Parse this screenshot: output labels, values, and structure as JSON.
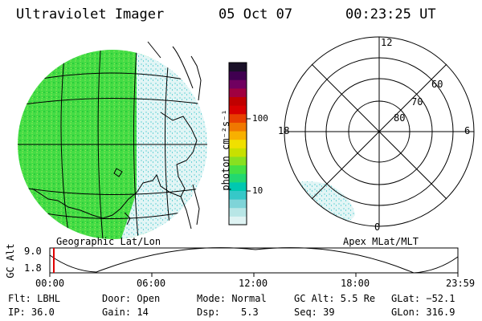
{
  "header": {
    "instrument": "Ultraviolet Imager",
    "date": "05 Oct 07",
    "time": "00:23:25 UT"
  },
  "colorbar": {
    "unit_label": "photon cm⁻²s⁻¹",
    "ticks": [
      "100",
      "10"
    ],
    "colors": [
      "#dff3f3",
      "#b8e6e6",
      "#7fd4d8",
      "#36c8c8",
      "#00c8b0",
      "#22d870",
      "#44e044",
      "#88e020",
      "#c8e000",
      "#f0e000",
      "#f8b000",
      "#f07800",
      "#e84000",
      "#d80000",
      "#c00000",
      "#a00040",
      "#700060",
      "#400050",
      "#1a1028"
    ]
  },
  "left_map": {
    "label": "Geographic Lat/Lon"
  },
  "polar_plot": {
    "label": "Apex MLat/MLT",
    "mlt_labels": {
      "top": "12",
      "left": "18",
      "right": "6",
      "bottom": "0"
    },
    "lat_labels": [
      "60",
      "70",
      "80"
    ]
  },
  "timeline": {
    "axis_label": "GC Alt",
    "y_ticks": [
      "9.0",
      "1.8"
    ],
    "x_ticks": [
      "00:00",
      "06:00",
      "12:00",
      "18:00",
      "23:59"
    ],
    "marker_color": "#e00000"
  },
  "status": {
    "filter": "Flt: LBHL",
    "ip": "IP: 36.0",
    "door": "Door: Open",
    "gain": "Gain: 14",
    "mode": "Mode: Normal",
    "dsp_label": "Dsp:",
    "dsp_value": "5.3",
    "gc_alt": "GC Alt: 5.5 Re",
    "seq": "Seq: 39",
    "glat": "GLat: −52.1",
    "glon": "GLon: 316.9"
  }
}
